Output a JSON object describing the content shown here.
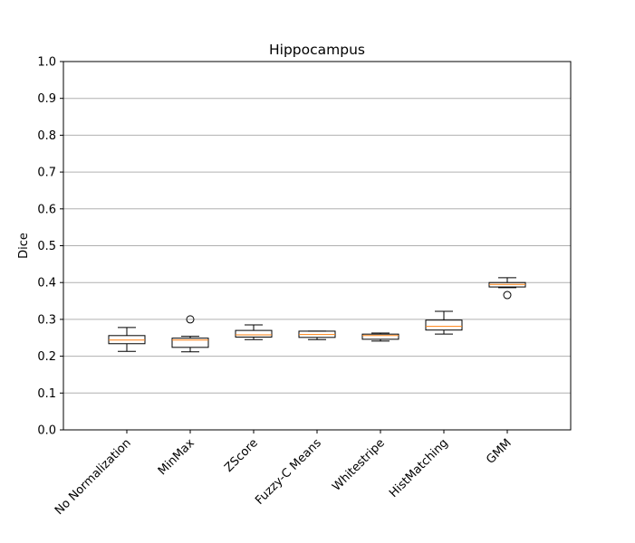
{
  "chart_data": {
    "type": "box",
    "title": "Hippocampus",
    "xlabel": "",
    "ylabel": "Dice",
    "ylim": [
      0,
      1.0
    ],
    "yticks": [
      "0.0",
      "0.1",
      "0.2",
      "0.3",
      "0.4",
      "0.5",
      "0.6",
      "0.7",
      "0.8",
      "0.9",
      "1.0"
    ],
    "grid": "y",
    "categories": [
      "No Normalization",
      "MinMax",
      "ZScore",
      "Fuzzy-C Means",
      "Whitestripe",
      "HistMatching",
      "GMM"
    ],
    "boxes": [
      {
        "whisker_low": 0.213,
        "q1": 0.234,
        "median": 0.244,
        "q3": 0.256,
        "whisker_high": 0.278,
        "outliers": []
      },
      {
        "whisker_low": 0.212,
        "q1": 0.224,
        "median": 0.244,
        "q3": 0.249,
        "whisker_high": 0.254,
        "outliers": [
          0.3
        ]
      },
      {
        "whisker_low": 0.245,
        "q1": 0.252,
        "median": 0.258,
        "q3": 0.27,
        "whisker_high": 0.285,
        "outliers": []
      },
      {
        "whisker_low": 0.245,
        "q1": 0.251,
        "median": 0.259,
        "q3": 0.268,
        "whisker_high": 0.268,
        "outliers": []
      },
      {
        "whisker_low": 0.241,
        "q1": 0.246,
        "median": 0.256,
        "q3": 0.26,
        "whisker_high": 0.263,
        "outliers": []
      },
      {
        "whisker_low": 0.26,
        "q1": 0.271,
        "median": 0.281,
        "q3": 0.298,
        "whisker_high": 0.322,
        "outliers": []
      },
      {
        "whisker_low": 0.386,
        "q1": 0.388,
        "median": 0.395,
        "q3": 0.4,
        "whisker_high": 0.413,
        "outliers": [
          0.366
        ]
      }
    ],
    "colors": {
      "box": "#000000",
      "median": "#ff7f0e",
      "grid": "#b0b0b0",
      "background": "#ffffff"
    }
  }
}
